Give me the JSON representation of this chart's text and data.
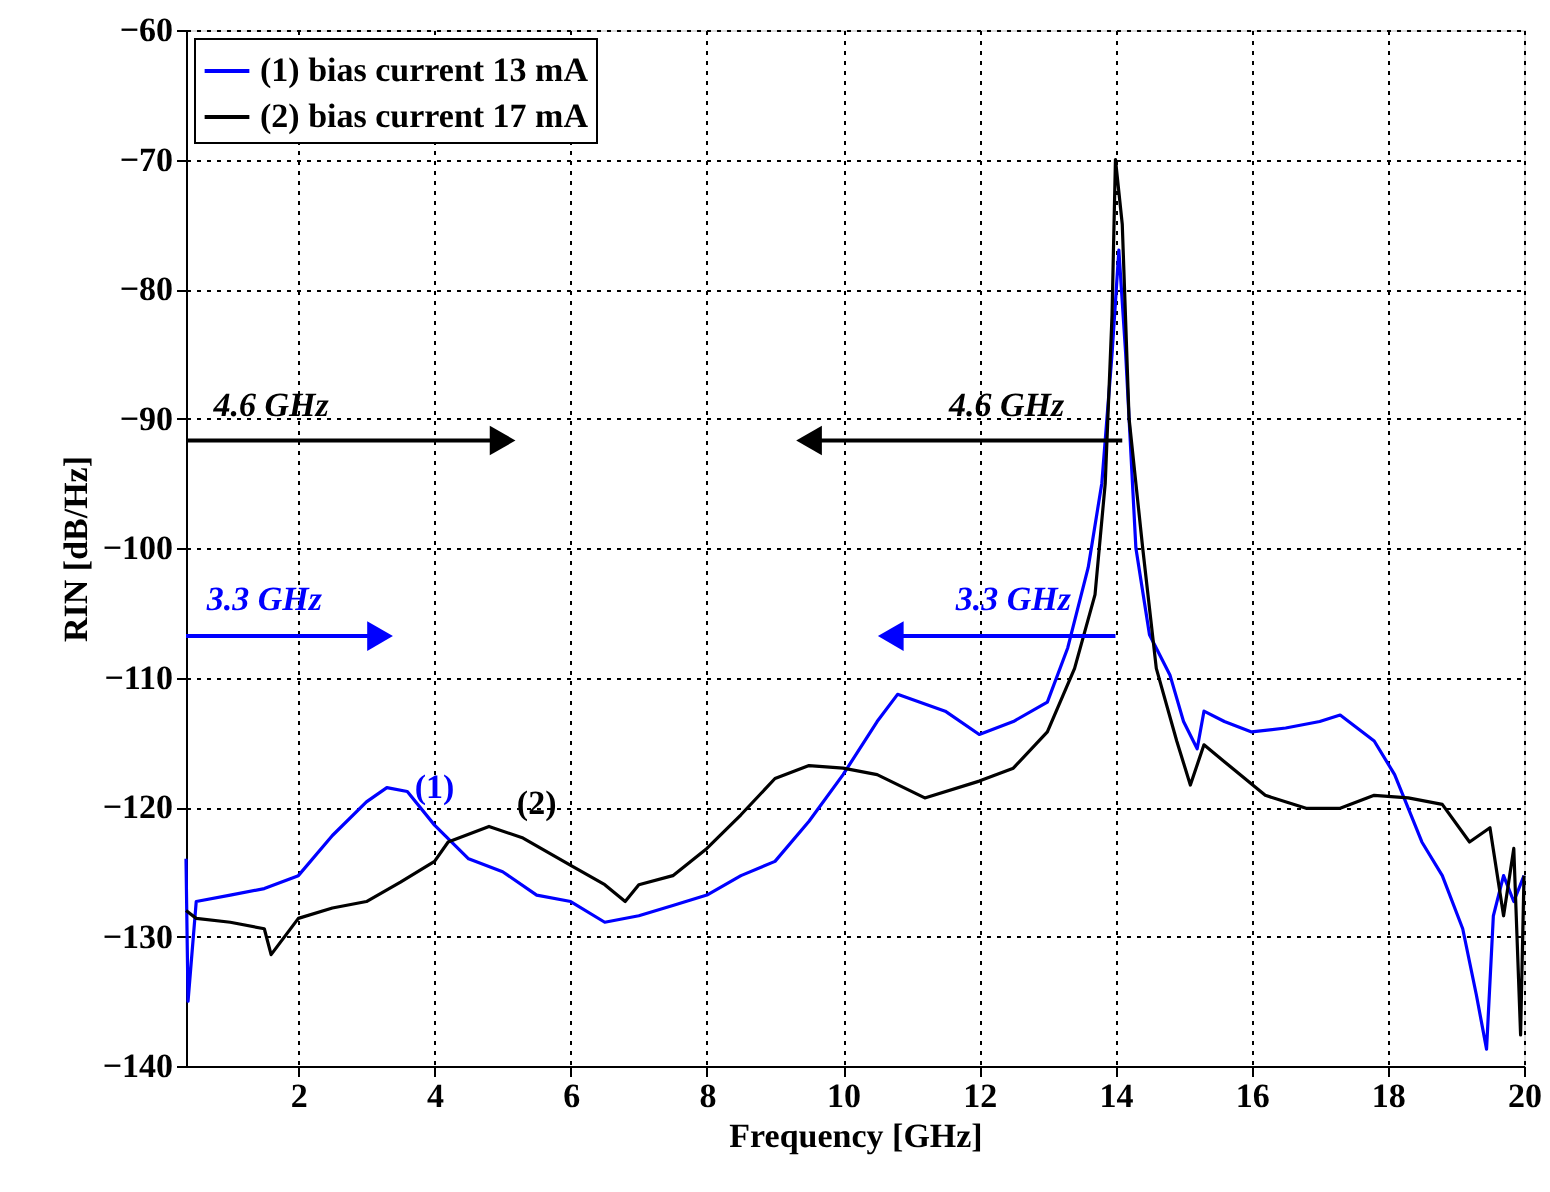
{
  "chart_data": {
    "type": "line",
    "xlabel": "Frequency [GHz]",
    "ylabel": "RIN [dB/Hz]",
    "xlim": [
      0.35,
      20
    ],
    "xticks": [
      2,
      4,
      6,
      8,
      10,
      12,
      14,
      16,
      18,
      20
    ],
    "ylim": [
      -140,
      -60
    ],
    "yticks": [
      -140,
      -130,
      -120,
      -110,
      -100,
      -90,
      -80,
      -70,
      -60
    ],
    "grid": true,
    "legend": "top left",
    "line_style": "solid",
    "marker": "none",
    "series": [
      {
        "name": "(1) bias current 13 mA",
        "color": "#0000ff",
        "x": [
          0.35,
          0.38,
          0.5,
          1.0,
          1.5,
          2.0,
          2.5,
          3.0,
          3.3,
          3.6,
          4.0,
          4.5,
          5.0,
          5.5,
          6.0,
          6.5,
          7.0,
          7.5,
          8.0,
          8.5,
          9.0,
          9.5,
          10.0,
          10.5,
          10.8,
          11.5,
          12.0,
          12.5,
          13.0,
          13.3,
          13.6,
          13.8,
          13.95,
          14.05,
          14.15,
          14.3,
          14.5,
          14.8,
          15.0,
          15.2,
          15.3,
          15.6,
          16.0,
          16.5,
          17.0,
          17.3,
          17.8,
          18.1,
          18.5,
          18.8,
          19.1,
          19.3,
          19.45,
          19.55,
          19.7,
          19.85,
          20.0
        ],
        "values": [
          -124,
          -135,
          -127.3,
          -126.8,
          -126.3,
          -125.3,
          -122.2,
          -119.6,
          -118.5,
          -118.8,
          -121.4,
          -124,
          -125,
          -126.8,
          -127.3,
          -128.9,
          -128.4,
          -127.6,
          -126.8,
          -125.3,
          -124.2,
          -121.1,
          -117.5,
          -113.4,
          -111.3,
          -112.6,
          -114.4,
          -113.4,
          -111.9,
          -107.7,
          -101.5,
          -95,
          -85,
          -77,
          -85,
          -100,
          -106.7,
          -109.8,
          -113.4,
          -115.5,
          -112.6,
          -113.4,
          -114.2,
          -113.9,
          -113.4,
          -112.9,
          -114.9,
          -117.5,
          -122.7,
          -125.3,
          -129.4,
          -134.5,
          -138.7,
          -128.4,
          -125.3,
          -127.3,
          -125.3
        ]
      },
      {
        "name": "(2) bias current 17 mA",
        "color": "#000000",
        "x": [
          0.35,
          0.5,
          1.0,
          1.5,
          1.6,
          2.0,
          2.5,
          3.0,
          3.5,
          4.0,
          4.2,
          4.8,
          5.3,
          6.0,
          6.5,
          6.8,
          7.0,
          7.5,
          8.0,
          8.5,
          9.0,
          9.5,
          10.0,
          10.5,
          11.2,
          12.0,
          12.5,
          13.0,
          13.4,
          13.7,
          13.85,
          13.95,
          14.0,
          14.1,
          14.2,
          14.4,
          14.6,
          14.9,
          15.1,
          15.3,
          15.6,
          16.2,
          16.8,
          17.3,
          17.8,
          18.3,
          18.8,
          19.2,
          19.5,
          19.7,
          19.85,
          19.95,
          20.0
        ],
        "values": [
          -128,
          -128.6,
          -128.9,
          -129.4,
          -131.4,
          -128.6,
          -127.8,
          -127.3,
          -125.8,
          -124.2,
          -122.7,
          -121.5,
          -122.4,
          -124.5,
          -126,
          -127.3,
          -126,
          -125.3,
          -123.2,
          -120.6,
          -117.8,
          -116.8,
          -117,
          -117.5,
          -119.3,
          -118,
          -117,
          -114.2,
          -109.3,
          -103.6,
          -95,
          -82,
          -70,
          -75,
          -90,
          -100,
          -109.3,
          -114.9,
          -118.3,
          -115.2,
          -116.5,
          -119.1,
          -120.1,
          -120.1,
          -119.1,
          -119.3,
          -119.8,
          -122.7,
          -121.6,
          -128.4,
          -123.2,
          -137.6,
          -125.3
        ]
      }
    ],
    "annotations": [
      "4.6 GHz",
      "4.6 GHz",
      "3.3 GHz",
      "3.3 GHz",
      "(1)",
      "(2)"
    ]
  }
}
